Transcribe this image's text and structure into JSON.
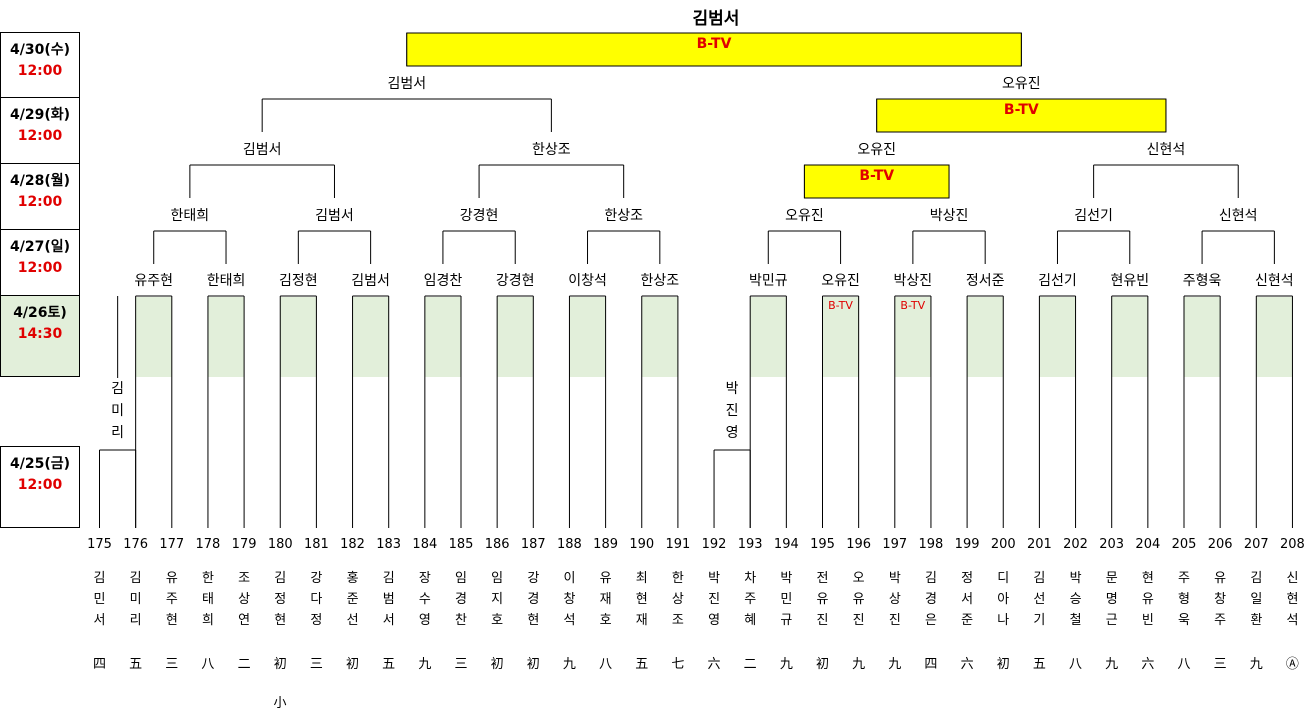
{
  "title": "김범서",
  "colors": {
    "highlight": "#ffff00",
    "green": "#e2efda",
    "red": "#e00000",
    "line": "#000000"
  },
  "days": [
    {
      "date": "4/30(수)",
      "time": "12:00"
    },
    {
      "date": "4/29(화)",
      "time": "12:00"
    },
    {
      "date": "4/28(월)",
      "time": "12:00"
    },
    {
      "date": "4/27(일)",
      "time": "12:00"
    },
    {
      "date": "4/26토)",
      "time": "14:30"
    },
    {
      "date": "4/25(금)",
      "time": "12:00"
    }
  ],
  "entries": [
    {
      "num": "175",
      "name": "김민서",
      "grade": "四"
    },
    {
      "num": "176",
      "name": "김미리",
      "grade": "五"
    },
    {
      "num": "177",
      "name": "유주현",
      "grade": "三"
    },
    {
      "num": "178",
      "name": "한태희",
      "grade": "八"
    },
    {
      "num": "179",
      "name": "조상연",
      "grade": "二"
    },
    {
      "num": "180",
      "name": "김정현",
      "grade": "初"
    },
    {
      "num": "181",
      "name": "강다정",
      "grade": "三"
    },
    {
      "num": "182",
      "name": "홍준선",
      "grade": "初"
    },
    {
      "num": "183",
      "name": "김범서",
      "grade": "五"
    },
    {
      "num": "184",
      "name": "장수영",
      "grade": "九"
    },
    {
      "num": "185",
      "name": "임경찬",
      "grade": "三"
    },
    {
      "num": "186",
      "name": "임지호",
      "grade": "初"
    },
    {
      "num": "187",
      "name": "강경현",
      "grade": "初"
    },
    {
      "num": "188",
      "name": "이창석",
      "grade": "九"
    },
    {
      "num": "189",
      "name": "유재호",
      "grade": "八"
    },
    {
      "num": "190",
      "name": "최현재",
      "grade": "五"
    },
    {
      "num": "191",
      "name": "한상조",
      "grade": "七"
    },
    {
      "num": "192",
      "name": "박진영",
      "grade": "六"
    },
    {
      "num": "193",
      "name": "차주혜",
      "grade": "二"
    },
    {
      "num": "194",
      "name": "박민규",
      "grade": "九"
    },
    {
      "num": "195",
      "name": "전유진",
      "grade": "初"
    },
    {
      "num": "196",
      "name": "오유진",
      "grade": "九"
    },
    {
      "num": "197",
      "name": "박상진",
      "grade": "九"
    },
    {
      "num": "198",
      "name": "김경은",
      "grade": "四"
    },
    {
      "num": "199",
      "name": "정서준",
      "grade": "六"
    },
    {
      "num": "200",
      "name": "디아나",
      "grade": "初"
    },
    {
      "num": "201",
      "name": "김선기",
      "grade": "五"
    },
    {
      "num": "202",
      "name": "박승철",
      "grade": "八"
    },
    {
      "num": "203",
      "name": "문명근",
      "grade": "九"
    },
    {
      "num": "204",
      "name": "현유빈",
      "grade": "六"
    },
    {
      "num": "205",
      "name": "주형욱",
      "grade": "八"
    },
    {
      "num": "206",
      "name": "유창주",
      "grade": "三"
    },
    {
      "num": "207",
      "name": "김일환",
      "grade": "九"
    },
    {
      "num": "208",
      "name": "신현석",
      "grade": "Ⓐ"
    }
  ],
  "extra_note": "小",
  "pre_round": [
    {
      "winner": "김미리"
    },
    {
      "winner": "박진영"
    }
  ],
  "round1_winners": [
    "유주현",
    "한태희",
    "김정현",
    "김범서",
    "임경찬",
    "강경현",
    "이창석",
    "한상조",
    "박민규",
    "오유진",
    "박상진",
    "정서준",
    "김선기",
    "현유빈",
    "주형욱",
    "신현석"
  ],
  "round2_winners": [
    "한태희",
    "김범서",
    "강경현",
    "한상조",
    "오유진",
    "박상진",
    "김선기",
    "신현석"
  ],
  "round3_winners": [
    "김범서",
    "한상조",
    "오유진",
    "신현석"
  ],
  "round4_winners": [
    "김범서",
    "오유진"
  ],
  "btv_label": "B-TV"
}
